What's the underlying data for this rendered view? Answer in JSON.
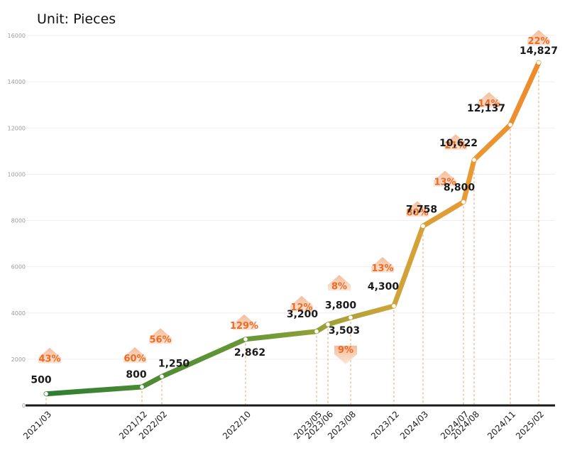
{
  "chart_data": {
    "type": "line",
    "title": "",
    "unit_label": "Unit: Pieces",
    "xlabel": "",
    "ylabel": "",
    "ylim": [
      0,
      16000
    ],
    "yticks": [
      "0",
      "2000",
      "4000",
      "6000",
      "8000",
      "10000",
      "12000",
      "14000",
      "16000"
    ],
    "grid": true,
    "legend": "none",
    "colors": {
      "start": "#2e7d32",
      "middle": "#8a9c3a",
      "upper": "#e6b43c",
      "end": "#ef8a2c",
      "growth_label": "#ef6a22"
    },
    "points": [
      {
        "x": "2021/03",
        "y": 500,
        "value_label": "500",
        "growth": "43%"
      },
      {
        "x": "2021/12",
        "y": 800,
        "value_label": "800",
        "growth": "60%"
      },
      {
        "x": "2022/02",
        "y": 1250,
        "value_label": "1,250",
        "growth": "56%"
      },
      {
        "x": "2022/10",
        "y": 2862,
        "value_label": "2,862",
        "growth": "129%"
      },
      {
        "x": "2023/05",
        "y": 3200,
        "value_label": "3,200",
        "growth": "12%"
      },
      {
        "x": "2023/06",
        "y": 3503,
        "value_label": "3,503",
        "growth": "9%"
      },
      {
        "x": "2023/08",
        "y": 3800,
        "value_label": "3,800",
        "growth": "8%"
      },
      {
        "x": "2023/12",
        "y": 4300,
        "value_label": "4,300",
        "growth": "13%"
      },
      {
        "x": "2024/03",
        "y": 7758,
        "value_label": "7,758",
        "growth": "80%"
      },
      {
        "x": "2024/07",
        "y": 8800,
        "value_label": "8,800",
        "growth": "13%"
      },
      {
        "x": "2024/08",
        "y": 10622,
        "value_label": "10,622",
        "growth": "21%"
      },
      {
        "x": "2024/11",
        "y": 12137,
        "value_label": "12,137",
        "growth": "14%"
      },
      {
        "x": "2025/02",
        "y": 14827,
        "value_label": "14,827",
        "growth": "22%"
      }
    ]
  }
}
